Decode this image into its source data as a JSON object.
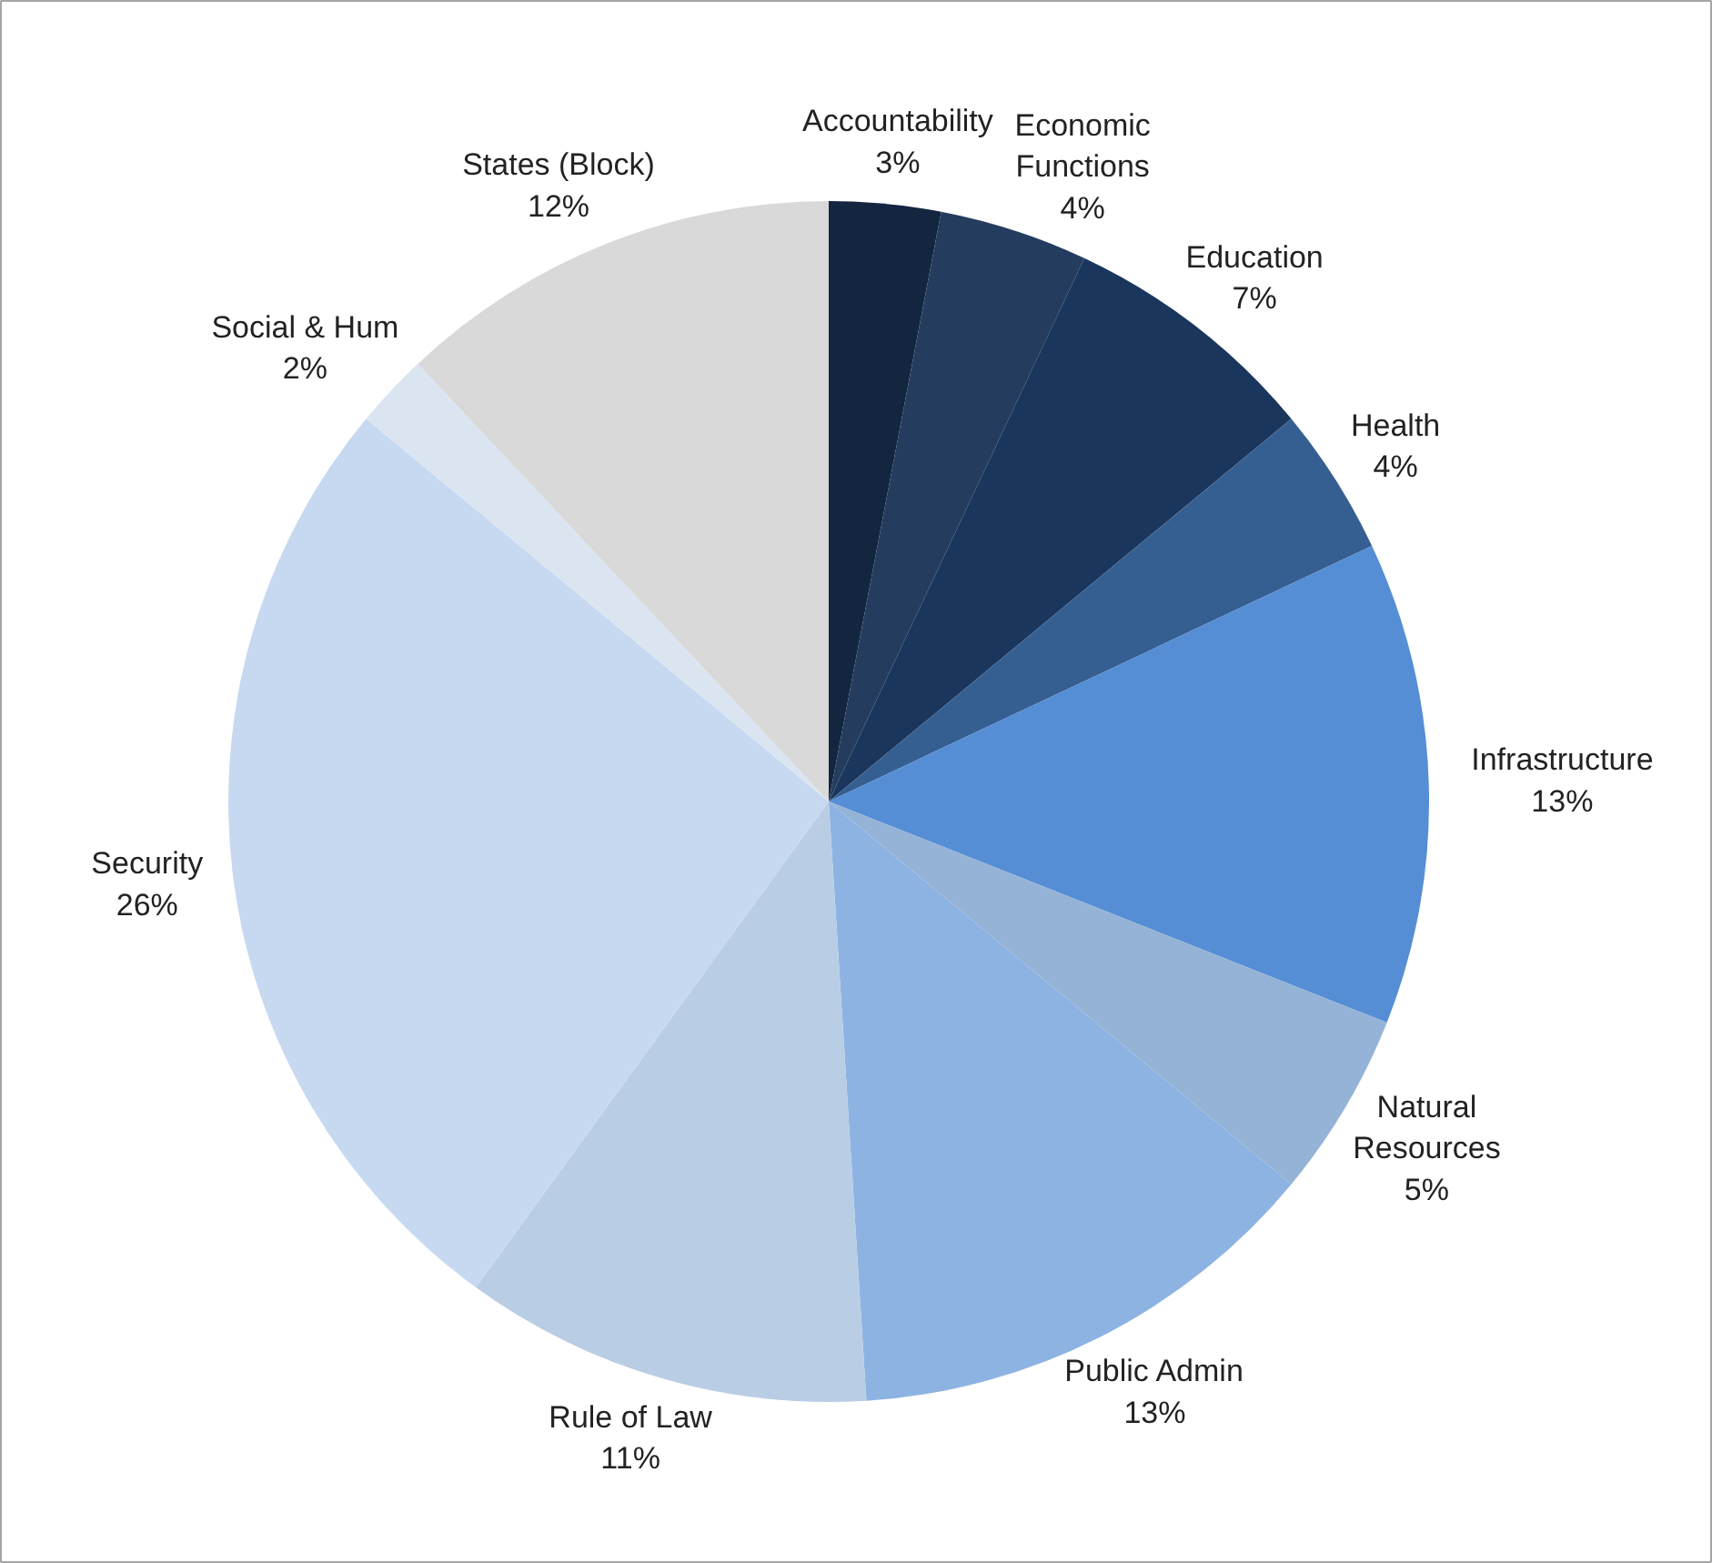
{
  "chart_data": {
    "type": "pie",
    "categories": [
      "Accountability",
      "Economic Functions",
      "Education",
      "Health",
      "Infrastructure",
      "Natural Resources",
      "Public Admin",
      "Rule of Law",
      "Security",
      "Social & Hum",
      "States (Block)"
    ],
    "values": [
      3,
      4,
      7,
      4,
      13,
      5,
      13,
      11,
      26,
      2,
      12
    ],
    "value_labels": [
      "3%",
      "4%",
      "7%",
      "4%",
      "13%",
      "5%",
      "13%",
      "11%",
      "26%",
      "2%",
      "12%"
    ],
    "colors": [
      "#14253f",
      "#243d5f",
      "#1a365d",
      "#365f91",
      "#558ed5",
      "#95b3d7",
      "#8db3e2",
      "#b9cde5",
      "#c6d9f1",
      "#dbe5f1",
      "#d9d9d9"
    ]
  }
}
